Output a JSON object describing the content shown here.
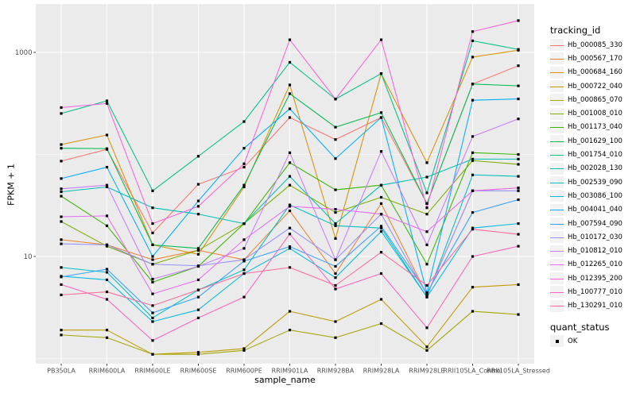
{
  "chart_data": {
    "type": "line",
    "title": "",
    "xlabel": "sample_name",
    "ylabel": "FPKM + 1",
    "y_scale": "log10",
    "ylim": [
      0.9,
      3000
    ],
    "y_major_ticks": [
      {
        "value": 10,
        "label": "10"
      },
      {
        "value": 1000,
        "label": "1000"
      }
    ],
    "y_minor_ticks": [
      1,
      100
    ],
    "grid": true,
    "legend_position": "right",
    "panel_bg": "#EBEBEB",
    "grid_color": "#FFFFFF",
    "tick_text_color": "#4D4D4D",
    "point_color": "#000000",
    "categories": [
      "PB350LA",
      "RRIM600LA",
      "RRIM600LE",
      "RRIM600SE",
      "RRIM600PE",
      "RRIM901LA",
      "RRIM928BA",
      "RRIM928LA",
      "RRIM928LE",
      "RRII105LA_Control",
      "RRII105LA_Stressed"
    ],
    "legend": {
      "color_title": "tracking_id",
      "shape_title": "quant_status",
      "shape_entries": [
        {
          "label": "OK"
        }
      ]
    },
    "series": [
      {
        "name": "Hb_000085_330",
        "color": "#F8766D",
        "values": [
          86,
          112,
          17,
          51,
          75,
          230,
          140,
          230,
          33,
          490,
          740
        ]
      },
      {
        "name": "Hb_000567_170",
        "color": "#EA8331",
        "values": [
          14.6,
          13,
          9.3,
          11.5,
          9.3,
          28,
          6.8,
          33,
          4.2,
          44,
          47
        ]
      },
      {
        "name": "Hb_000684_160",
        "color": "#D89000",
        "values": [
          125,
          155,
          13,
          10.5,
          48,
          480,
          15,
          620,
          83,
          900,
          1050
        ]
      },
      {
        "name": "Hb_000722_040",
        "color": "#C09B00",
        "values": [
          1.9,
          1.9,
          1.1,
          1.15,
          1.25,
          2.9,
          2.3,
          3.8,
          1.3,
          5.0,
          5.3
        ]
      },
      {
        "name": "Hb_000865_070",
        "color": "#A3A500",
        "values": [
          1.7,
          1.6,
          1.1,
          1.1,
          1.2,
          1.9,
          1.6,
          2.2,
          1.2,
          2.9,
          2.7
        ]
      },
      {
        "name": "Hb_001008_010",
        "color": "#7CAE00",
        "values": [
          22,
          12.6,
          8.4,
          11.5,
          21,
          50,
          27,
          38,
          26,
          87,
          80
        ]
      },
      {
        "name": "Hb_001173_040",
        "color": "#39B600",
        "values": [
          39,
          20,
          5.6,
          8,
          21,
          83,
          45,
          50,
          8.4,
          104,
          100
        ]
      },
      {
        "name": "Hb_001629_100",
        "color": "#00BB4E",
        "values": [
          115,
          114,
          13,
          12,
          50,
          394,
          185,
          257,
          33,
          490,
          470
        ]
      },
      {
        "name": "Hb_001754_010",
        "color": "#00C087",
        "values": [
          252,
          335,
          44,
          96,
          210,
          800,
          349,
          620,
          42,
          1300,
          1070
        ]
      },
      {
        "name": "Hb_002028_130",
        "color": "#00C0B2",
        "values": [
          43,
          48,
          30,
          26,
          21,
          61,
          21,
          50,
          60,
          90,
          90
        ]
      },
      {
        "name": "Hb_002539_090",
        "color": "#00BFC4",
        "values": [
          7.8,
          7.0,
          2.5,
          4.7,
          7.4,
          32,
          20,
          19,
          4.0,
          63,
          61
        ]
      },
      {
        "name": "Hb_003086_100",
        "color": "#00BAE0",
        "values": [
          6.4,
          5.9,
          2.3,
          3.0,
          6.8,
          12,
          6.2,
          17.6,
          4.0,
          19,
          21
        ]
      },
      {
        "name": "Hb_004041_040",
        "color": "#00B0F6",
        "values": [
          58,
          75,
          10,
          35,
          115,
          280,
          91,
          230,
          4.4,
          340,
          350
        ]
      },
      {
        "name": "Hb_007594_090",
        "color": "#35A2FF",
        "values": [
          6.3,
          7.5,
          2.8,
          4.0,
          9.0,
          12.5,
          8.0,
          19.8,
          4.4,
          27,
          36
        ]
      },
      {
        "name": "Hb_010172_030",
        "color": "#9590FF",
        "values": [
          13.3,
          13,
          8.4,
          8.1,
          9.3,
          19,
          9.3,
          26,
          4.2,
          44,
          44
        ]
      },
      {
        "name": "Hb_010812_010",
        "color": "#C77CFF",
        "values": [
          46,
          50,
          6.0,
          8.0,
          12,
          104,
          9.3,
          107,
          13,
          150,
          223
        ]
      },
      {
        "name": "Hb_012265_010",
        "color": "#E76BF3",
        "values": [
          24.5,
          25,
          4.3,
          5.9,
          14.6,
          31,
          29,
          26,
          17.5,
          44,
          47
        ]
      },
      {
        "name": "Hb_012395_200",
        "color": "#FA62DB",
        "values": [
          288,
          316,
          21,
          31,
          81,
          1330,
          349,
          1330,
          30,
          1600,
          2050
        ]
      },
      {
        "name": "Hb_100777_010",
        "color": "#FF62BC",
        "values": [
          5.3,
          3.8,
          1.5,
          2.5,
          4.0,
          16.6,
          4.8,
          6.8,
          2.0,
          10,
          12.6
        ]
      },
      {
        "name": "Hb_130291_010",
        "color": "#FF6A98",
        "values": [
          4.2,
          4.5,
          3.3,
          4.7,
          6.8,
          7.8,
          5.2,
          11,
          5.2,
          18.5,
          16.5
        ]
      }
    ]
  }
}
